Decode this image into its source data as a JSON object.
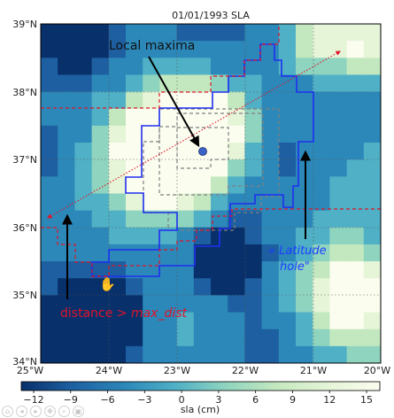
{
  "map": {
    "title": "01/01/1993 SLA",
    "lat_labels": [
      "39°N",
      "38°N",
      "37°N",
      "36°N",
      "35°N",
      "34°N"
    ],
    "lon_labels": [
      "25°W",
      "24°W",
      "23°W",
      "22°W",
      "21°W",
      "20°W"
    ],
    "extent": {
      "lon": [
        -25,
        -20
      ],
      "lat": [
        34,
        39
      ]
    },
    "grid": "dotted",
    "colormap": [
      "#08306b",
      "#1d5fa0",
      "#2c88b9",
      "#4fb0c6",
      "#8fd4bf",
      "#c3e8bf",
      "#e6f5d8",
      "#fbfdef"
    ]
  },
  "colorbar": {
    "ticks": [
      "−12",
      "−9",
      "−6",
      "−3",
      "0",
      "3",
      "6",
      "9",
      "12",
      "15"
    ],
    "range": [
      -12,
      15
    ],
    "label": "sla (cm)"
  },
  "annotations": {
    "local_maxima": "Local maxima",
    "latitude_hole_1": "« Latitude",
    "latitude_hole_2": "hole\"",
    "distance_prefix": "distance > ",
    "distance_var": "max_dist"
  },
  "colors": {
    "contour_blue": "#1f2ff0",
    "contour_red": "#e0142a",
    "contour_gray": "#808080",
    "maxima_dot": "#3a62c8"
  },
  "toolbar": {
    "icons": [
      "home-icon",
      "back-icon",
      "forward-icon",
      "pan-icon",
      "zoom-icon",
      "save-icon"
    ]
  }
}
